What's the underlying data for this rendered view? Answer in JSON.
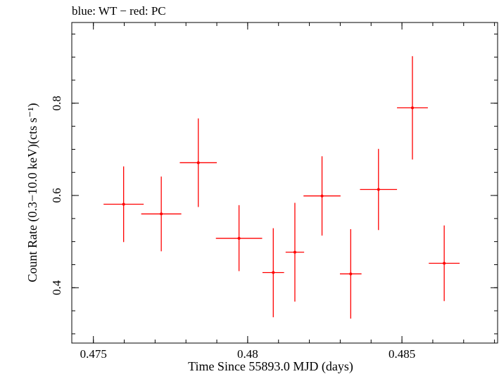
{
  "chart_data": {
    "type": "scatter",
    "title": "blue: WT − red: PC",
    "xlabel": "Time Since 55893.0 MJD (days)",
    "ylabel": "Count Rate (0.3−10.0 keV)(cts s⁻¹)",
    "xlim": [
      0.4743,
      0.4881
    ],
    "ylim": [
      0.28,
      0.975
    ],
    "x_ticks": [
      0.475,
      0.48,
      0.485
    ],
    "x_tick_labels": [
      "0.475",
      "0.48",
      "0.485"
    ],
    "y_ticks": [
      0.4,
      0.6,
      0.8
    ],
    "y_tick_labels": [
      "0.4",
      "0.6",
      "0.8"
    ],
    "grid": false,
    "series": [
      {
        "color": "#ff0000",
        "points": [
          {
            "x": 0.47598,
            "y": 0.581,
            "xerr": 0.00065,
            "yerr_low": 0.082,
            "yerr_high": 0.082
          },
          {
            "x": 0.4772,
            "y": 0.56,
            "xerr": 0.00065,
            "yerr_low": 0.081,
            "yerr_high": 0.081
          },
          {
            "x": 0.4784,
            "y": 0.671,
            "xerr": 0.0006,
            "yerr_low": 0.096,
            "yerr_high": 0.096
          },
          {
            "x": 0.47972,
            "y": 0.507,
            "xerr": 0.00075,
            "yerr_low": 0.071,
            "yerr_high": 0.072
          },
          {
            "x": 0.48083,
            "y": 0.433,
            "xerr": 0.00035,
            "yerr_low": 0.097,
            "yerr_high": 0.096
          },
          {
            "x": 0.48153,
            "y": 0.477,
            "xerr": 0.0003,
            "yerr_low": 0.107,
            "yerr_high": 0.107
          },
          {
            "x": 0.48241,
            "y": 0.599,
            "xerr": 0.0006,
            "yerr_low": 0.086,
            "yerr_high": 0.086
          },
          {
            "x": 0.48334,
            "y": 0.43,
            "xerr": 0.00035,
            "yerr_low": 0.097,
            "yerr_high": 0.097
          },
          {
            "x": 0.48424,
            "y": 0.613,
            "xerr": 0.0006,
            "yerr_low": 0.088,
            "yerr_high": 0.088
          },
          {
            "x": 0.48534,
            "y": 0.79,
            "xerr": 0.0005,
            "yerr_low": 0.112,
            "yerr_high": 0.112
          },
          {
            "x": 0.48637,
            "y": 0.453,
            "xerr": 0.0005,
            "yerr_low": 0.082,
            "yerr_high": 0.082
          }
        ]
      }
    ]
  }
}
